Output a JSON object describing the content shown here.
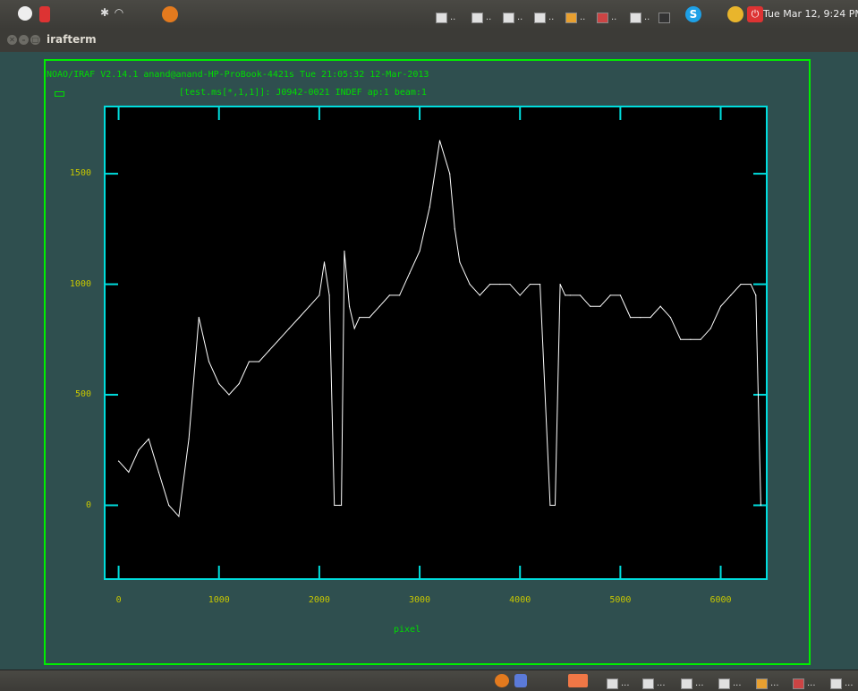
{
  "top_panel": {
    "icons": [
      "settings-icon",
      "indicator-icon",
      "bluetooth-icon",
      "wifi-icon",
      "firefox-icon"
    ],
    "tray_labels": [
      "..",
      "..",
      "..",
      "..",
      "..",
      "..",
      "..",
      "..."
    ],
    "skype_glyph": "S",
    "clock": "Tue Mar 12, 9:24 PM"
  },
  "window": {
    "title": "irafterm",
    "close_glyph": "✕",
    "min_glyph": "–",
    "max_glyph": "□"
  },
  "terminal": {
    "header_line": "NOAO/IRAF V2.14.1 anand@anand-HP-ProBook-4421s Tue 21:05:32 12-Mar-2013",
    "plot_title": "[test.ms[*,1,1]]: J0942-0021 INDEF ap:1 beam:1"
  },
  "colors": {
    "frame": "#00ee00",
    "axes": "#00dddd",
    "labels": "#c8c800",
    "text": "#00dd00",
    "trace": "#ffffff",
    "background": "#2f4f4f"
  },
  "chart_data": {
    "type": "line",
    "title": "[test.ms[*,1,1]]: J0942-0021 INDEF ap:1 beam:1",
    "xlabel": "pixel",
    "ylabel": "",
    "xlim": [
      -130,
      6450
    ],
    "ylim": [
      -330,
      1800
    ],
    "x_ticks": [
      0,
      1000,
      2000,
      3000,
      4000,
      5000,
      6000
    ],
    "y_ticks": [
      0,
      500,
      1000,
      1500
    ],
    "grid": false,
    "series": [
      {
        "x": [
          0,
          100,
          200,
          300,
          400,
          500,
          600,
          700,
          800,
          900,
          1000,
          1100,
          1200,
          1300,
          1400,
          1500,
          1600,
          1700,
          1800,
          1900,
          2000,
          2050,
          2100,
          2150,
          2200,
          2220,
          2250,
          2300,
          2350,
          2400,
          2500,
          2600,
          2700,
          2800,
          2900,
          3000,
          3100,
          3200,
          3300,
          3350,
          3400,
          3500,
          3600,
          3700,
          3800,
          3900,
          4000,
          4100,
          4200,
          4300,
          4350,
          4400,
          4450,
          4500,
          4600,
          4700,
          4800,
          4900,
          5000,
          5100,
          5200,
          5300,
          5400,
          5500,
          5600,
          5700,
          5800,
          5900,
          6000,
          6100,
          6200,
          6300,
          6350,
          6400
        ],
        "values": [
          200,
          150,
          250,
          300,
          150,
          0,
          -50,
          300,
          850,
          650,
          550,
          500,
          550,
          650,
          650,
          700,
          750,
          800,
          850,
          900,
          950,
          1100,
          950,
          0,
          0,
          0,
          1150,
          900,
          800,
          850,
          850,
          900,
          950,
          950,
          1050,
          1150,
          1350,
          1650,
          1500,
          1250,
          1100,
          1000,
          950,
          1000,
          1000,
          1000,
          950,
          1000,
          1000,
          0,
          0,
          1000,
          950,
          950,
          950,
          900,
          900,
          950,
          950,
          850,
          850,
          850,
          900,
          850,
          750,
          750,
          750,
          800,
          900,
          950,
          1000,
          1000,
          950,
          0
        ]
      }
    ]
  },
  "taskbar": {
    "labels": [
      "...",
      "...",
      "...",
      "...",
      "...",
      "...",
      "..."
    ]
  }
}
